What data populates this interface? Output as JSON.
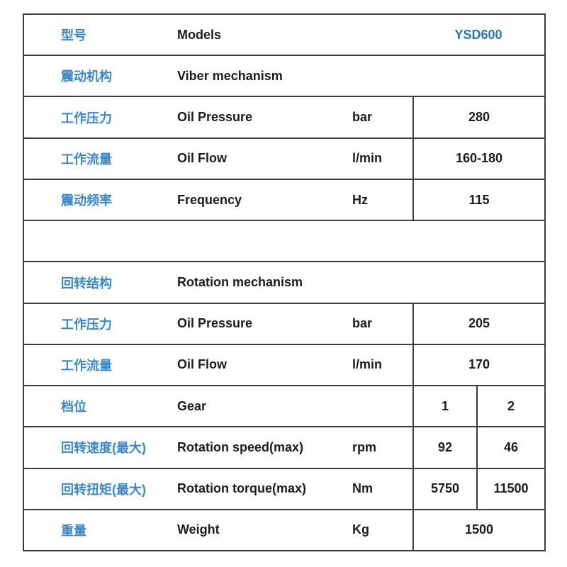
{
  "table": {
    "colors": {
      "label_blue": "#3d87c6",
      "model_blue": "#2d73b8",
      "text_dark": "#1c1c1c",
      "border": "#3c3c3c"
    },
    "rows": [
      {
        "cn": "型号",
        "en": "Models",
        "unit": "",
        "values": [
          "YSD600"
        ],
        "divider": false,
        "value_class": "model"
      },
      {
        "cn": "震动机构",
        "en": "Viber mechanism",
        "unit": "",
        "values": [],
        "divider": false
      },
      {
        "cn": "工作压力",
        "en": "Oil Pressure",
        "unit": "bar",
        "values": [
          "280"
        ],
        "divider": true
      },
      {
        "cn": "工作流量",
        "en": "Oil Flow",
        "unit": "l/min",
        "values": [
          "160-180"
        ],
        "divider": true
      },
      {
        "cn": "震动频率",
        "en": "Frequency",
        "unit": "Hz",
        "values": [
          "115"
        ],
        "divider": true
      },
      {
        "cn": "",
        "en": "",
        "unit": "",
        "values": [],
        "divider": false
      },
      {
        "cn": "回转结构",
        "en": "Rotation mechanism",
        "unit": "",
        "values": [],
        "divider": false
      },
      {
        "cn": "工作压力",
        "en": "Oil Pressure",
        "unit": "bar",
        "values": [
          "205"
        ],
        "divider": true
      },
      {
        "cn": "工作流量",
        "en": "Oil Flow",
        "unit": "l/min",
        "values": [
          "170"
        ],
        "divider": true
      },
      {
        "cn": "档位",
        "en": "Gear",
        "unit": "",
        "values": [
          "1",
          "2"
        ],
        "divider": true
      },
      {
        "cn": "回转速度(最大)",
        "en": "Rotation speed(max)",
        "unit": "rpm",
        "values": [
          "92",
          "46"
        ],
        "divider": true
      },
      {
        "cn": "回转扭矩(最大)",
        "en": "Rotation torque(max)",
        "unit": "Nm",
        "values": [
          "5750",
          "11500"
        ],
        "divider": true
      },
      {
        "cn": "重量",
        "en": "Weight",
        "unit": "Kg",
        "values": [
          "1500"
        ],
        "divider": true
      }
    ]
  }
}
